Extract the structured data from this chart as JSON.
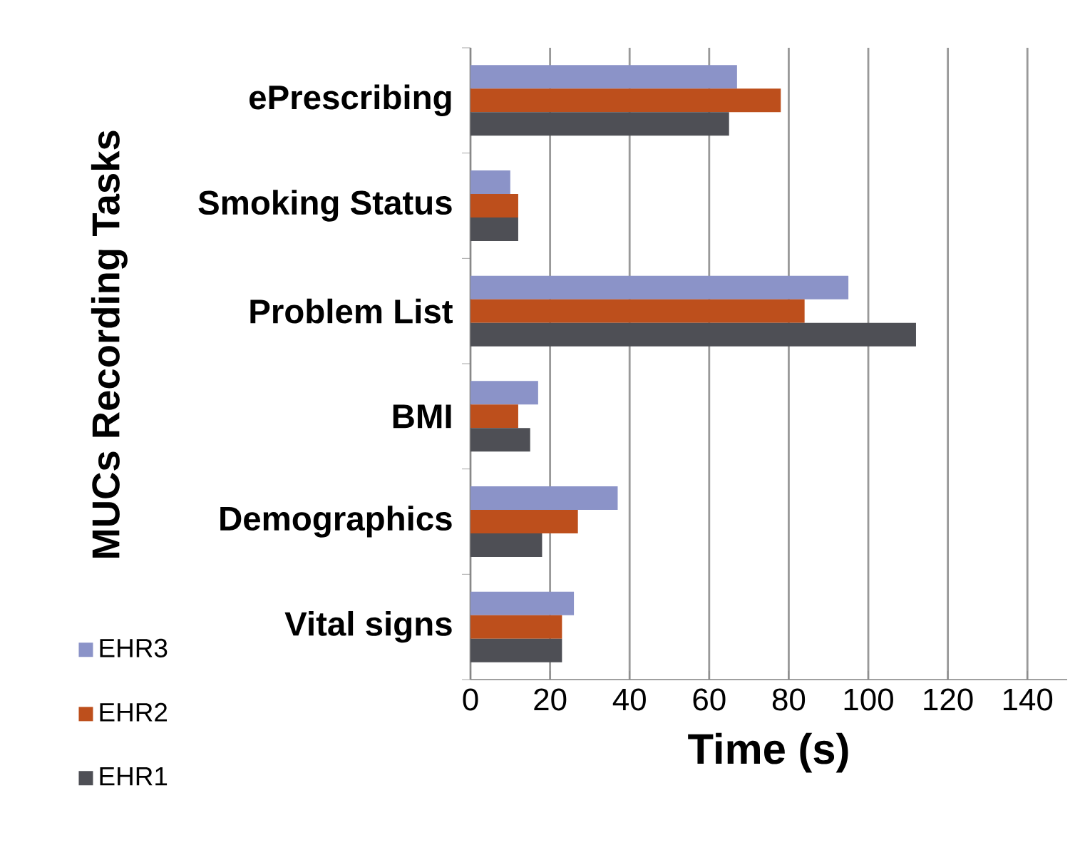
{
  "chart_data": {
    "type": "bar",
    "orientation": "horizontal",
    "xlabel": "Time (s)",
    "ylabel": "MUCs Recording Tasks",
    "categories": [
      "ePrescribing",
      "Smoking Status",
      "Problem List",
      "BMI",
      "Demographics",
      "Vital signs"
    ],
    "series": [
      {
        "name": "EHR3",
        "color": "#8b93c8",
        "values": [
          67,
          10,
          95,
          17,
          37,
          26
        ]
      },
      {
        "name": "EHR2",
        "color": "#bd4f1c",
        "values": [
          78,
          12,
          84,
          12,
          27,
          23
        ]
      },
      {
        "name": "EHR1",
        "color": "#4e4f55",
        "values": [
          65,
          12,
          112,
          15,
          18,
          23
        ]
      }
    ],
    "xlim": [
      0,
      150
    ],
    "xticks": [
      0,
      20,
      40,
      60,
      80,
      100,
      120,
      140
    ],
    "grid": "x",
    "legend": "bottom left"
  }
}
